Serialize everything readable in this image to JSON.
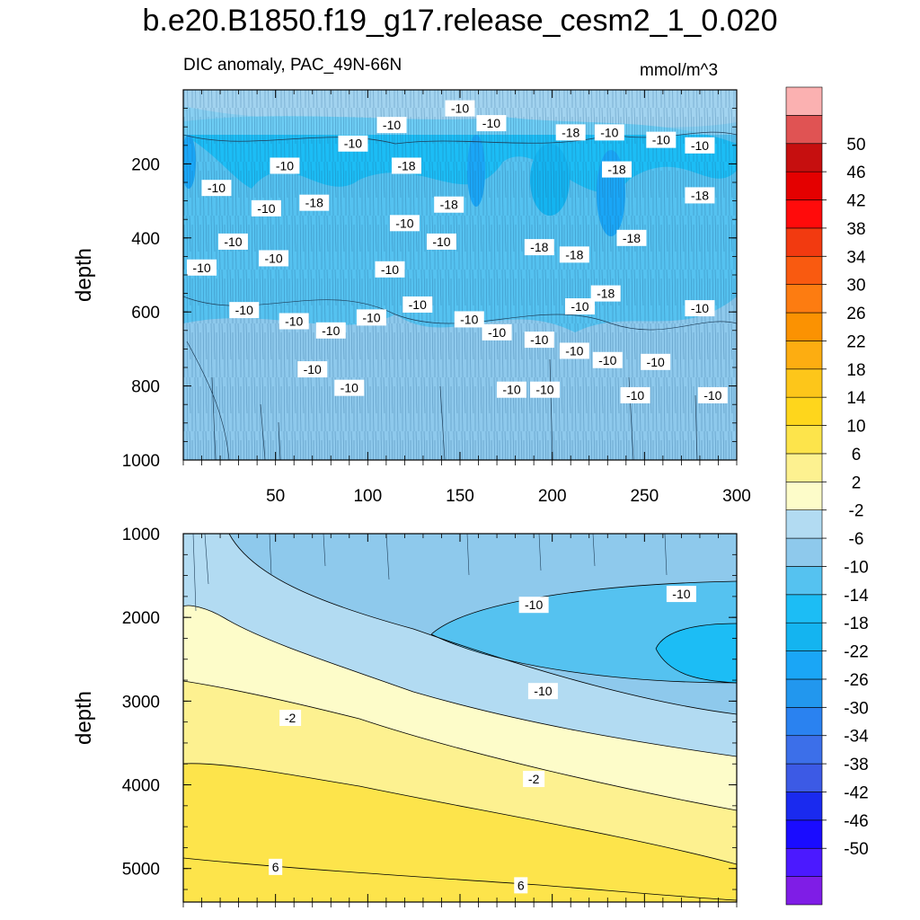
{
  "chart_data": {
    "type": "contour",
    "title": "b.e20.B1850.f19_g17.release_cesm2_1_0.020",
    "subtitle": "DIC anomaly, PAC_49N-66N",
    "units": "mmol/m^3",
    "xlabel": "",
    "ylabel": "depth",
    "x_range": [
      0,
      300
    ],
    "x_ticks": [
      50,
      100,
      150,
      200,
      250,
      300
    ],
    "panels": [
      {
        "name": "upper",
        "y_range": [
          0,
          1000
        ],
        "y_ticks": [
          200,
          400,
          600,
          800,
          1000
        ],
        "ylabel": "depth",
        "contour_labels": [
          {
            "x": 10,
            "y": 480,
            "text": "-10"
          },
          {
            "x": 18,
            "y": 265,
            "text": "-10"
          },
          {
            "x": 27,
            "y": 410,
            "text": "-10"
          },
          {
            "x": 33,
            "y": 595,
            "text": "-10"
          },
          {
            "x": 45,
            "y": 320,
            "text": "-10"
          },
          {
            "x": 49,
            "y": 455,
            "text": "-10"
          },
          {
            "x": 55,
            "y": 205,
            "text": "-10"
          },
          {
            "x": 60,
            "y": 625,
            "text": "-10"
          },
          {
            "x": 70,
            "y": 755,
            "text": "-10"
          },
          {
            "x": 71,
            "y": 305,
            "text": "-18"
          },
          {
            "x": 80,
            "y": 650,
            "text": "-10"
          },
          {
            "x": 90,
            "y": 805,
            "text": "-10"
          },
          {
            "x": 92,
            "y": 145,
            "text": "-10"
          },
          {
            "x": 102,
            "y": 615,
            "text": "-10"
          },
          {
            "x": 112,
            "y": 485,
            "text": "-10"
          },
          {
            "x": 113,
            "y": 95,
            "text": "-10"
          },
          {
            "x": 120,
            "y": 360,
            "text": "-10"
          },
          {
            "x": 121,
            "y": 205,
            "text": "-18"
          },
          {
            "x": 127,
            "y": 580,
            "text": "-10"
          },
          {
            "x": 140,
            "y": 410,
            "text": "-10"
          },
          {
            "x": 144,
            "y": 310,
            "text": "-18"
          },
          {
            "x": 150,
            "y": 50,
            "text": "-10"
          },
          {
            "x": 155,
            "y": 620,
            "text": "-10"
          },
          {
            "x": 167,
            "y": 90,
            "text": "-10"
          },
          {
            "x": 170,
            "y": 655,
            "text": "-10"
          },
          {
            "x": 178,
            "y": 810,
            "text": "-10"
          },
          {
            "x": 193,
            "y": 675,
            "text": "-10"
          },
          {
            "x": 193,
            "y": 425,
            "text": "-18"
          },
          {
            "x": 196,
            "y": 810,
            "text": "-10"
          },
          {
            "x": 210,
            "y": 115,
            "text": "-18"
          },
          {
            "x": 212,
            "y": 445,
            "text": "-18"
          },
          {
            "x": 212,
            "y": 705,
            "text": "-10"
          },
          {
            "x": 215,
            "y": 585,
            "text": "-10"
          },
          {
            "x": 229,
            "y": 550,
            "text": "-18"
          },
          {
            "x": 230,
            "y": 730,
            "text": "-10"
          },
          {
            "x": 231,
            "y": 115,
            "text": "-10"
          },
          {
            "x": 235,
            "y": 215,
            "text": "-18"
          },
          {
            "x": 243,
            "y": 400,
            "text": "-18"
          },
          {
            "x": 245,
            "y": 825,
            "text": "-10"
          },
          {
            "x": 256,
            "y": 735,
            "text": "-10"
          },
          {
            "x": 259,
            "y": 135,
            "text": "-10"
          },
          {
            "x": 280,
            "y": 150,
            "text": "-10"
          },
          {
            "x": 280,
            "y": 285,
            "text": "-18"
          },
          {
            "x": 280,
            "y": 590,
            "text": "-10"
          },
          {
            "x": 287,
            "y": 825,
            "text": "-10"
          }
        ]
      },
      {
        "name": "lower",
        "y_range": [
          1000,
          5400
        ],
        "y_ticks": [
          1000,
          2000,
          3000,
          4000,
          5000
        ],
        "ylabel": "depth",
        "contour_labels": [
          {
            "x": 190,
            "y": 1850,
            "text": "-10"
          },
          {
            "x": 270,
            "y": 1720,
            "text": "-10"
          },
          {
            "x": 195,
            "y": 2880,
            "text": "-10"
          },
          {
            "x": 58,
            "y": 3200,
            "text": "-2"
          },
          {
            "x": 190,
            "y": 3930,
            "text": "-2"
          },
          {
            "x": 50,
            "y": 4980,
            "text": "6"
          },
          {
            "x": 183,
            "y": 5200,
            "text": "6"
          }
        ]
      }
    ],
    "colorbar": {
      "colors": [
        "#7f1de6",
        "#4b19ff",
        "#1a0cff",
        "#1a2aef",
        "#3c5ae5",
        "#3c6fe9",
        "#2a82f0",
        "#2297ee",
        "#1aa6f6",
        "#14b4f0",
        "#1cbdf5",
        "#55c2f0",
        "#8ec9ec",
        "#b2dbf2",
        "#fdfcc9",
        "#fdf190",
        "#fde44b",
        "#fed61c",
        "#fdc61a",
        "#fdad11",
        "#fb9202",
        "#fd7c11",
        "#f95a10",
        "#f23a10",
        "#ff0b0b",
        "#e40000",
        "#c60f0f",
        "#e05353",
        "#fbb1b1"
      ],
      "labels": [
        "-50",
        "-46",
        "-42",
        "-38",
        "-34",
        "-30",
        "-26",
        "-22",
        "-18",
        "-14",
        "-10",
        "-6",
        "-2",
        "2",
        "6",
        "10",
        "14",
        "18",
        "22",
        "26",
        "30",
        "34",
        "38",
        "42",
        "46",
        "50"
      ]
    }
  }
}
